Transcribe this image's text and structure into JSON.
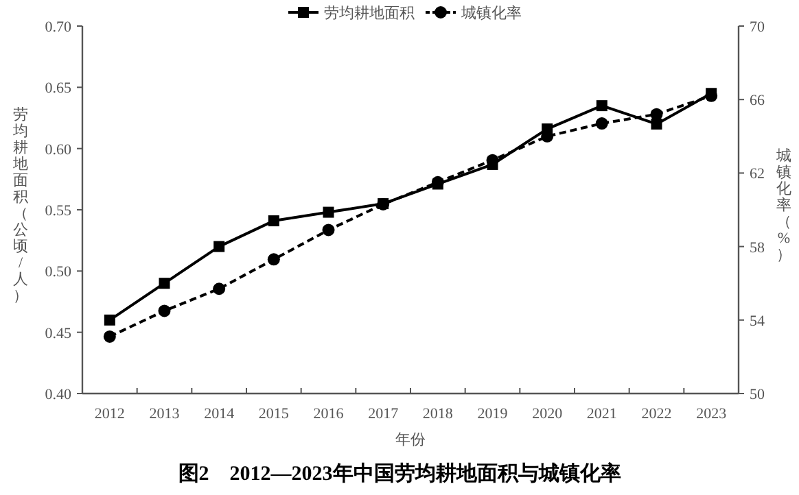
{
  "chart_data": {
    "type": "line",
    "title": "图2　2012—2023年中国劳均耕地面积与城镇化率",
    "xlabel": "年份",
    "ylabel": "劳均耕地面积（公顷/人）",
    "y2label": "城镇化率（%）",
    "categories": [
      "2012",
      "2013",
      "2014",
      "2015",
      "2016",
      "2017",
      "2018",
      "2019",
      "2020",
      "2021",
      "2022",
      "2023"
    ],
    "series": [
      {
        "name": "劳均耕地面积",
        "color": "#000000",
        "marker": "square",
        "line_style": "solid",
        "values": [
          0.46,
          0.49,
          0.52,
          0.541,
          0.548,
          0.555,
          0.571,
          0.587,
          0.616,
          0.635,
          0.62,
          0.645
        ]
      },
      {
        "name": "城镇化率",
        "color": "#000000",
        "marker": "circle",
        "line_style": "dashed",
        "axis": "y2",
        "values": [
          53.1,
          54.5,
          55.7,
          57.3,
          58.9,
          60.3,
          61.5,
          62.7,
          64.0,
          64.7,
          65.2,
          66.2
        ]
      }
    ],
    "ylim": [
      0.4,
      0.7
    ],
    "yticks": [
      {
        "value": 0.4,
        "label": "0.40"
      },
      {
        "value": 0.45,
        "label": "0.45"
      },
      {
        "value": 0.5,
        "label": "0.50"
      },
      {
        "value": 0.55,
        "label": "0.55"
      },
      {
        "value": 0.6,
        "label": "0.60"
      },
      {
        "value": 0.65,
        "label": "0.65"
      },
      {
        "value": 0.7,
        "label": "0.70"
      }
    ],
    "y2lim": [
      50,
      70
    ],
    "y2ticks": [
      50,
      54,
      58,
      62,
      66,
      70
    ],
    "legend": "top",
    "grid": false
  }
}
